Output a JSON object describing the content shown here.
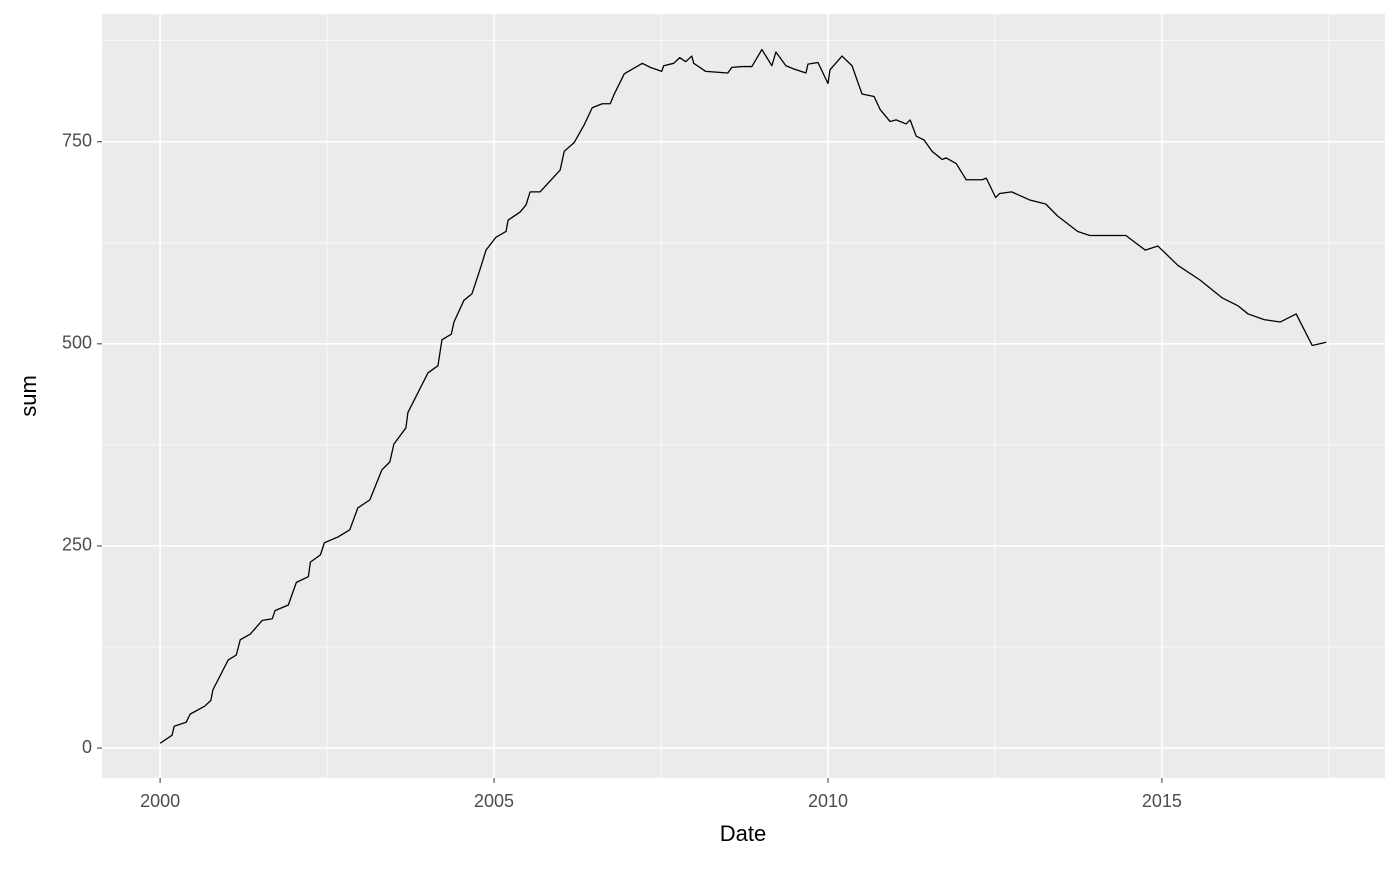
{
  "chart_data": {
    "type": "line",
    "x_label": "Date",
    "y_label": "sum",
    "xlim": [
      1999.13,
      2018.34
    ],
    "ylim": [
      -37,
      908
    ],
    "xticks": [
      2000,
      2005,
      2010,
      2015
    ],
    "yticks": [
      0,
      250,
      500,
      750
    ],
    "grid": true,
    "minor_grid": true,
    "color": "#000000",
    "x": [
      2000.0,
      2000.18,
      2000.21,
      2000.39,
      2000.45,
      2000.67,
      2000.76,
      2000.79,
      2001.02,
      2001.14,
      2001.2,
      2001.35,
      2001.53,
      2001.68,
      2001.72,
      2001.92,
      2002.04,
      2002.22,
      2002.25,
      2002.4,
      2002.46,
      2002.66,
      2002.84,
      2002.96,
      2003.14,
      2003.32,
      2003.44,
      2003.5,
      2003.68,
      2003.71,
      2004.01,
      2004.16,
      2004.22,
      2004.36,
      2004.4,
      2004.55,
      2004.67,
      2004.79,
      2004.88,
      2005.03,
      2005.18,
      2005.21,
      2005.39,
      2005.48,
      2005.54,
      2005.69,
      2005.99,
      2006.05,
      2006.2,
      2006.35,
      2006.47,
      2006.62,
      2006.74,
      2006.8,
      2006.95,
      2007.22,
      2007.34,
      2007.51,
      2007.54,
      2007.69,
      2007.78,
      2007.87,
      2007.96,
      2007.99,
      2008.17,
      2008.5,
      2008.56,
      2008.71,
      2008.86,
      2009.01,
      2009.16,
      2009.22,
      2009.37,
      2009.49,
      2009.67,
      2009.7,
      2009.85,
      2010.0,
      2010.03,
      2010.21,
      2010.36,
      2010.51,
      2010.69,
      2010.78,
      2010.93,
      2011.02,
      2011.17,
      2011.23,
      2011.32,
      2011.44,
      2011.56,
      2011.71,
      2011.77,
      2011.92,
      2012.07,
      2012.31,
      2012.37,
      2012.51,
      2012.57,
      2012.75,
      2013.02,
      2013.26,
      2013.44,
      2013.74,
      2013.92,
      2014.46,
      2014.75,
      2014.94,
      2015.24,
      2015.57,
      2015.9,
      2016.14,
      2016.29,
      2016.53,
      2016.77,
      2017.01,
      2017.25,
      2017.46
    ],
    "values": [
      6,
      16,
      27,
      32,
      42,
      52,
      59,
      72,
      109,
      115,
      134,
      141,
      158,
      160,
      170,
      177,
      205,
      212,
      230,
      239,
      254,
      261,
      270,
      297,
      307,
      344,
      354,
      376,
      396,
      415,
      464,
      473,
      505,
      512,
      527,
      554,
      562,
      592,
      616,
      632,
      639,
      653,
      663,
      672,
      688,
      688,
      715,
      738,
      749,
      771,
      792,
      797,
      797,
      809,
      834,
      847,
      842,
      837,
      844,
      847,
      854,
      849,
      856,
      847,
      837,
      835,
      842,
      843,
      843,
      864,
      844,
      861,
      844,
      840,
      835,
      846,
      848,
      822,
      839,
      856,
      844,
      809,
      806,
      790,
      775,
      777,
      772,
      777,
      757,
      752,
      738,
      728,
      730,
      723,
      703,
      703,
      705,
      681,
      686,
      688,
      678,
      673,
      658,
      639,
      634,
      634,
      616,
      621,
      597,
      579,
      557,
      547,
      537,
      530,
      527,
      537,
      498,
      502
    ]
  }
}
